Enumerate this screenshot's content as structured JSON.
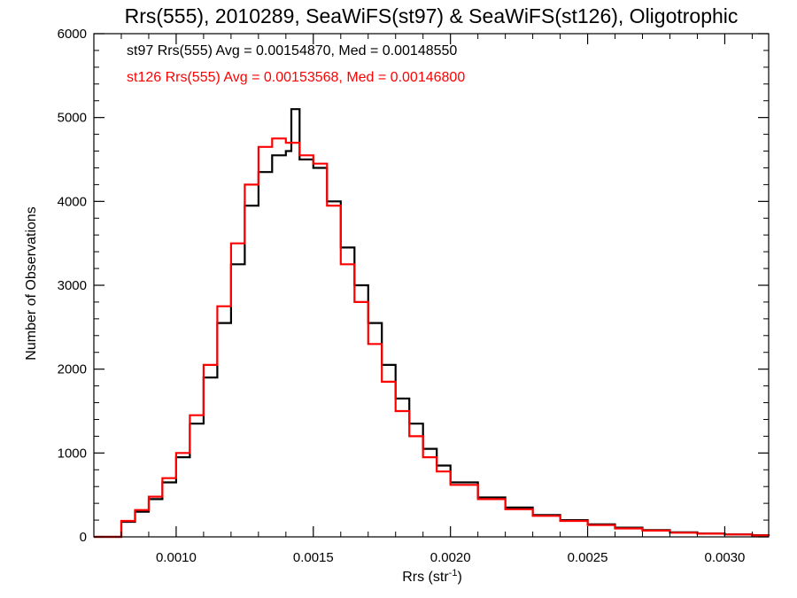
{
  "chart_data": {
    "type": "line",
    "style": "step-histogram",
    "title": "Rrs(555), 2010289, SeaWiFS(st97) & SeaWiFS(st126), Oligotrophic",
    "xlabel_main": "Rrs (str",
    "xlabel_sup": "-1",
    "xlabel_close": ")",
    "ylabel": "Number of Observations",
    "xlim": [
      0.0007,
      0.00316
    ],
    "ylim": [
      0,
      6000
    ],
    "x_ticks": [
      {
        "value": 0.001,
        "label": "0.0010"
      },
      {
        "value": 0.0015,
        "label": "0.0015"
      },
      {
        "value": 0.002,
        "label": "0.0020"
      },
      {
        "value": 0.0025,
        "label": "0.0025"
      },
      {
        "value": 0.003,
        "label": "0.0030"
      }
    ],
    "y_ticks": [
      {
        "value": 0,
        "label": "0"
      },
      {
        "value": 1000,
        "label": "1000"
      },
      {
        "value": 2000,
        "label": "2000"
      },
      {
        "value": 3000,
        "label": "3000"
      },
      {
        "value": 4000,
        "label": "4000"
      },
      {
        "value": 5000,
        "label": "5000"
      },
      {
        "value": 6000,
        "label": "6000"
      }
    ],
    "grid": false,
    "legend_placement": "top-left",
    "series": [
      {
        "name": "st97 Rrs(555) Avg = 0.00154870, Med = 0.00148550",
        "color": "#000000",
        "x": [
          0.0007,
          0.00075,
          0.0008,
          0.00085,
          0.0009,
          0.00095,
          0.001,
          0.00105,
          0.0011,
          0.00115,
          0.0012,
          0.00125,
          0.0013,
          0.00135,
          0.0014,
          0.00142,
          0.00145,
          0.0015,
          0.00155,
          0.0016,
          0.00165,
          0.0017,
          0.00175,
          0.0018,
          0.00185,
          0.0019,
          0.00195,
          0.002,
          0.0021,
          0.0022,
          0.0023,
          0.0024,
          0.0025,
          0.0026,
          0.0027,
          0.0028,
          0.0029,
          0.003,
          0.0031,
          0.00316
        ],
        "y": [
          0,
          0,
          180,
          300,
          450,
          650,
          950,
          1350,
          1900,
          2550,
          3250,
          3950,
          4350,
          4550,
          4600,
          5100,
          4500,
          4400,
          4000,
          3450,
          3000,
          2550,
          2050,
          1650,
          1350,
          1050,
          850,
          650,
          470,
          350,
          260,
          200,
          150,
          110,
          80,
          55,
          40,
          30,
          20,
          15
        ]
      },
      {
        "name": "st126 Rrs(555) Avg = 0.00153568, Med = 0.00146800",
        "color": "#ff0000",
        "x": [
          0.0007,
          0.00075,
          0.0008,
          0.00085,
          0.0009,
          0.00095,
          0.001,
          0.00105,
          0.0011,
          0.00115,
          0.0012,
          0.00125,
          0.0013,
          0.00135,
          0.0014,
          0.00145,
          0.0015,
          0.00155,
          0.0016,
          0.00165,
          0.0017,
          0.00175,
          0.0018,
          0.00185,
          0.0019,
          0.00195,
          0.002,
          0.0021,
          0.0022,
          0.0023,
          0.0024,
          0.0025,
          0.0026,
          0.0027,
          0.0028,
          0.0029,
          0.003,
          0.0031,
          0.00316
        ],
        "y": [
          0,
          0,
          190,
          320,
          480,
          700,
          1000,
          1450,
          2050,
          2750,
          3500,
          4200,
          4650,
          4750,
          4700,
          4550,
          4450,
          3950,
          3250,
          2800,
          2300,
          1850,
          1500,
          1200,
          950,
          780,
          620,
          450,
          330,
          250,
          190,
          140,
          100,
          75,
          50,
          38,
          28,
          18,
          14
        ]
      }
    ]
  }
}
